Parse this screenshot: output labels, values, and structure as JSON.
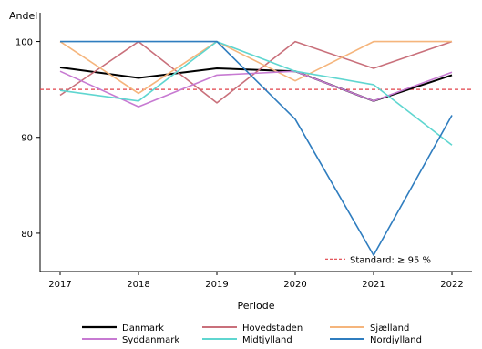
{
  "chart_data": {
    "type": "line",
    "title": "",
    "xlabel": "Periode",
    "ylabel": "Andel",
    "x": [
      "2017",
      "2018",
      "2019",
      "2020",
      "2021",
      "2022"
    ],
    "ylim": [
      76,
      103
    ],
    "yticks": [
      80,
      90,
      100
    ],
    "grid": false,
    "legend_position": "bottom",
    "series": [
      {
        "name": "Danmark",
        "color": "#000000",
        "values": [
          97.3,
          96.2,
          97.2,
          96.9,
          93.8,
          96.5
        ]
      },
      {
        "name": "Hovedstaden",
        "color": "#c9707b",
        "values": [
          94.4,
          100,
          93.6,
          100,
          97.2,
          100
        ]
      },
      {
        "name": "Sjælland",
        "color": "#f5b57c",
        "values": [
          100,
          94.6,
          100,
          95.9,
          100,
          100
        ]
      },
      {
        "name": "Syddanmark",
        "color": "#c77ad2",
        "values": [
          96.9,
          93.2,
          96.5,
          96.9,
          93.8,
          96.8
        ]
      },
      {
        "name": "Midtjylland",
        "color": "#5fd6d0",
        "values": [
          94.9,
          93.8,
          100,
          96.9,
          95.5,
          89.2
        ]
      },
      {
        "name": "Nordjylland",
        "color": "#2f7dbf",
        "values": [
          100,
          100,
          100,
          91.9,
          77.7,
          92.3
        ]
      }
    ],
    "reference": {
      "label": "Standard: ≥ 95 %",
      "value": 95,
      "color": "#e04048"
    }
  }
}
